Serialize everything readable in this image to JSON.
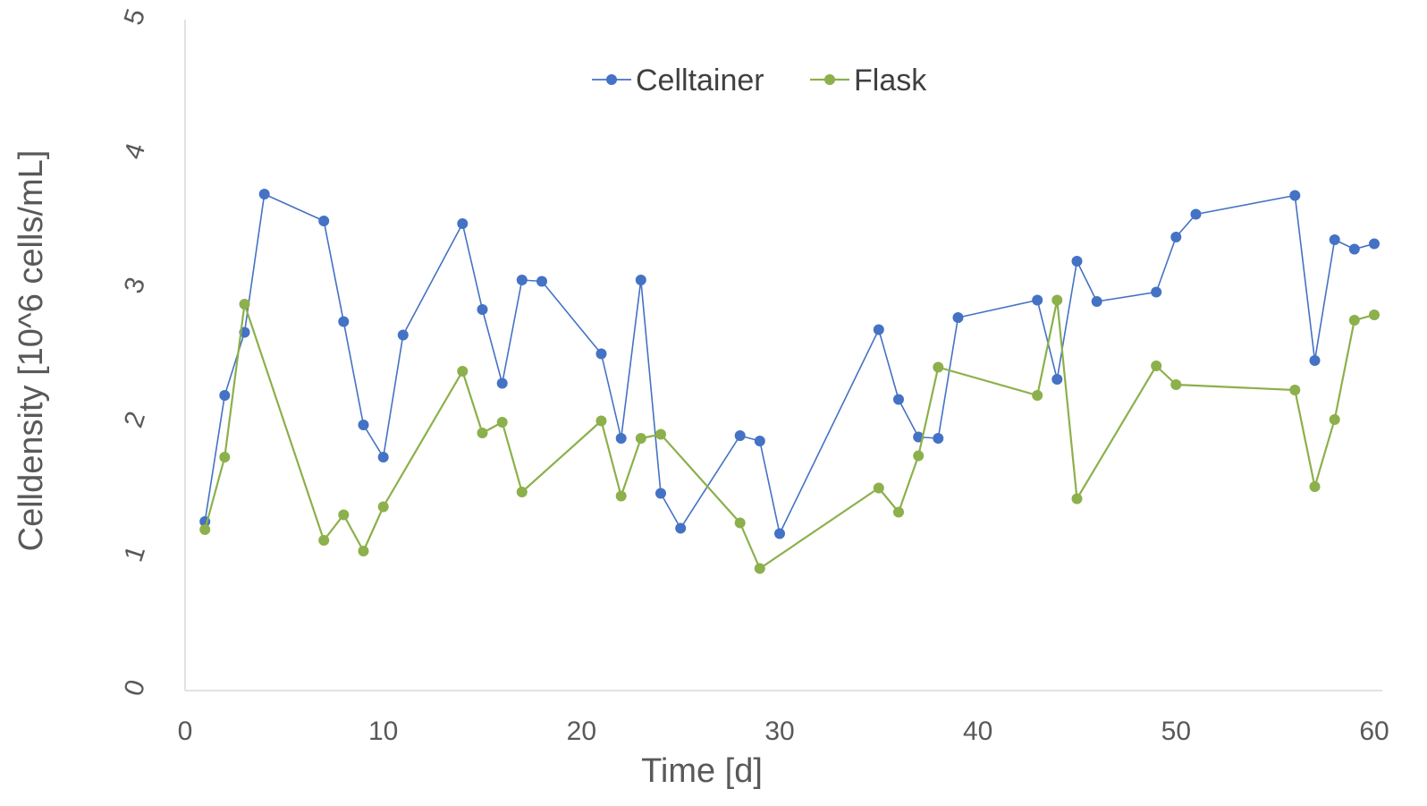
{
  "chart_data": {
    "type": "line",
    "xlabel": "Time [d]",
    "ylabel": "Celldensity [10^6 cells/mL]",
    "xlim": [
      0,
      60
    ],
    "ylim": [
      0,
      5
    ],
    "xticks": [
      "0",
      "10",
      "20",
      "30",
      "40",
      "50",
      "60"
    ],
    "yticks": [
      "0",
      "1",
      "2",
      "3",
      "4",
      "5"
    ],
    "grid": false,
    "legend_position": "top-center",
    "series": [
      {
        "name": "Celltainer",
        "color": "#4472C4",
        "x": [
          1,
          2,
          3,
          4,
          7,
          8,
          9,
          10,
          11,
          14,
          15,
          16,
          17,
          18,
          21,
          22,
          23,
          24,
          25,
          28,
          29,
          30,
          35,
          36,
          37,
          38,
          39,
          43,
          44,
          45,
          46,
          49,
          50,
          51,
          56,
          57,
          58,
          59,
          60
        ],
        "y": [
          1.26,
          2.2,
          2.67,
          3.7,
          3.5,
          2.75,
          1.98,
          1.74,
          2.65,
          3.48,
          2.84,
          2.29,
          3.06,
          3.05,
          2.51,
          1.88,
          3.06,
          1.47,
          1.21,
          1.9,
          1.86,
          1.17,
          2.69,
          2.17,
          1.89,
          1.88,
          2.78,
          2.91,
          2.32,
          3.2,
          2.9,
          2.97,
          3.38,
          3.55,
          3.69,
          2.46,
          3.36,
          3.29,
          3.33
        ]
      },
      {
        "name": "Flask",
        "color": "#8CB04B",
        "x": [
          1,
          2,
          3,
          7,
          8,
          9,
          10,
          14,
          15,
          16,
          17,
          21,
          22,
          23,
          24,
          28,
          29,
          35,
          36,
          37,
          38,
          43,
          44,
          45,
          49,
          50,
          56,
          57,
          58,
          59,
          60
        ],
        "y": [
          1.2,
          1.74,
          2.88,
          1.12,
          1.31,
          1.04,
          1.37,
          2.38,
          1.92,
          2.0,
          1.48,
          2.01,
          1.45,
          1.88,
          1.91,
          1.25,
          0.91,
          1.51,
          1.33,
          1.75,
          2.41,
          2.2,
          2.91,
          1.43,
          2.42,
          2.28,
          2.24,
          1.52,
          2.02,
          2.76,
          2.8
        ]
      }
    ]
  }
}
